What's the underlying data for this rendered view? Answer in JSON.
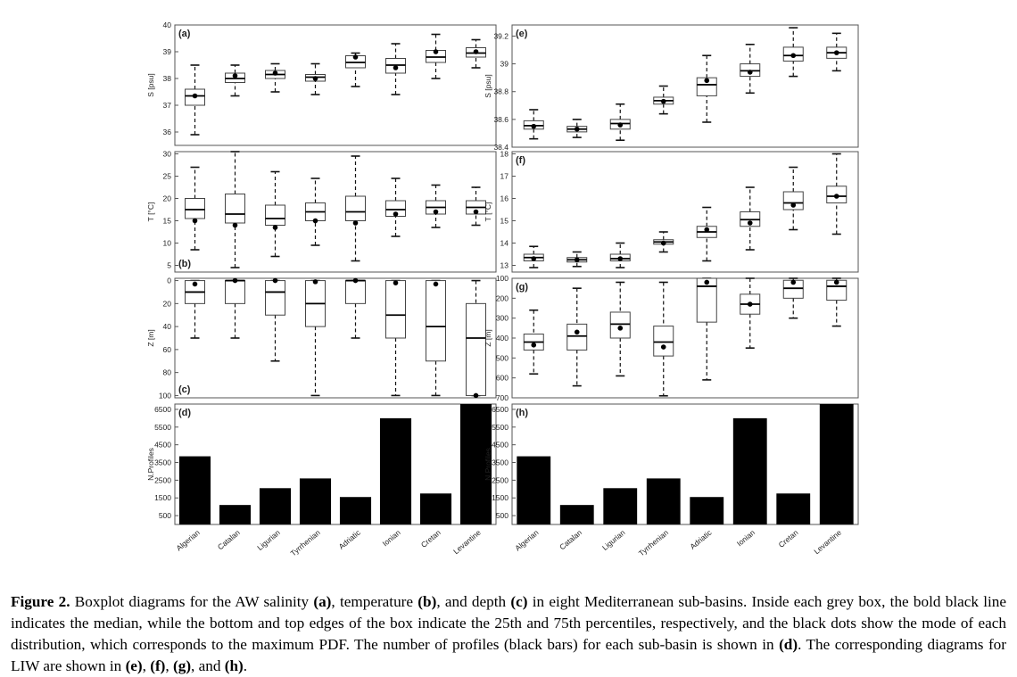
{
  "categories": [
    "Algerian",
    "Catalan",
    "Ligurian",
    "Tyrrhenian",
    "Adriatic",
    "Ionian",
    "Cretan",
    "Levantine"
  ],
  "caption": {
    "prefix": "Figure 2.",
    "body": [
      {
        "t": " Boxplot diagrams for the AW salinity "
      },
      {
        "b": "(a)"
      },
      {
        "t": ", temperature "
      },
      {
        "b": "(b)"
      },
      {
        "t": ", and depth "
      },
      {
        "b": "(c)"
      },
      {
        "t": " in eight Mediterranean sub-basins. Inside each grey box, the bold black line indicates the median, while the bottom and top edges of the box indicate the 25th and 75th percentiles, respectively, and the black dots show the mode of each distribution, which corresponds to the maximum PDF. The number of profiles (black bars) for each sub-basin is shown in "
      },
      {
        "b": "(d)"
      },
      {
        "t": ". The corresponding diagrams for LIW are shown in "
      },
      {
        "b": "(e)"
      },
      {
        "t": ", "
      },
      {
        "b": "(f)"
      },
      {
        "t": ", "
      },
      {
        "b": "(g)"
      },
      {
        "t": ", and "
      },
      {
        "b": "(h)"
      },
      {
        "t": "."
      }
    ]
  },
  "chart_data": [
    {
      "id": "a",
      "type": "box",
      "label": "(a)",
      "label_position": "top-left",
      "ylabel": "S [psu]",
      "ylim": [
        35.5,
        40
      ],
      "yticks": [
        36,
        37,
        38,
        39,
        40
      ],
      "ytick_labels": [
        "36",
        "37",
        "38",
        "39",
        "40"
      ],
      "boxes": [
        {
          "wlo": 35.9,
          "q1": 37.0,
          "med": 37.35,
          "q3": 37.6,
          "whi": 38.5,
          "mode": 37.35
        },
        {
          "wlo": 37.35,
          "q1": 37.85,
          "med": 38.0,
          "q3": 38.2,
          "whi": 38.5,
          "mode": 38.1
        },
        {
          "wlo": 37.5,
          "q1": 38.0,
          "med": 38.15,
          "q3": 38.3,
          "whi": 38.55,
          "mode": 38.2
        },
        {
          "wlo": 37.4,
          "q1": 37.9,
          "med": 38.05,
          "q3": 38.15,
          "whi": 38.55,
          "mode": 38.0
        },
        {
          "wlo": 37.7,
          "q1": 38.4,
          "med": 38.6,
          "q3": 38.85,
          "whi": 38.95,
          "mode": 38.8
        },
        {
          "wlo": 37.4,
          "q1": 38.2,
          "med": 38.5,
          "q3": 38.75,
          "whi": 39.3,
          "mode": 38.4
        },
        {
          "wlo": 38.0,
          "q1": 38.6,
          "med": 38.8,
          "q3": 39.05,
          "whi": 39.65,
          "mode": 39.0
        },
        {
          "wlo": 38.4,
          "q1": 38.8,
          "med": 38.95,
          "q3": 39.15,
          "whi": 39.45,
          "mode": 39.0
        }
      ]
    },
    {
      "id": "b",
      "type": "box",
      "label": "(b)",
      "label_position": "bottom-left",
      "ylabel": "T [°C]",
      "ylim": [
        3.5,
        30.5
      ],
      "yticks": [
        5,
        10,
        15,
        20,
        25,
        30
      ],
      "ytick_labels": [
        "5",
        "10",
        "15",
        "20",
        "25",
        "30"
      ],
      "boxes": [
        {
          "wlo": 8.5,
          "q1": 15.5,
          "med": 17.5,
          "q3": 20.0,
          "whi": 27.0,
          "mode": 15.0
        },
        {
          "wlo": 4.5,
          "q1": 14.5,
          "med": 16.5,
          "q3": 21.0,
          "whi": 30.5,
          "mode": 14.0
        },
        {
          "wlo": 7.0,
          "q1": 14.0,
          "med": 15.5,
          "q3": 18.5,
          "whi": 26.0,
          "mode": 13.5
        },
        {
          "wlo": 9.5,
          "q1": 15.0,
          "med": 17.0,
          "q3": 19.0,
          "whi": 24.5,
          "mode": 15.0
        },
        {
          "wlo": 6.0,
          "q1": 15.0,
          "med": 17.0,
          "q3": 20.5,
          "whi": 29.5,
          "mode": 14.5
        },
        {
          "wlo": 11.5,
          "q1": 16.0,
          "med": 17.5,
          "q3": 19.5,
          "whi": 24.5,
          "mode": 16.5
        },
        {
          "wlo": 13.5,
          "q1": 16.5,
          "med": 18.0,
          "q3": 19.5,
          "whi": 23.0,
          "mode": 17.0
        },
        {
          "wlo": 14.0,
          "q1": 16.5,
          "med": 18.0,
          "q3": 19.5,
          "whi": 22.5,
          "mode": 17.0
        }
      ]
    },
    {
      "id": "c",
      "type": "box",
      "label": "(c)",
      "label_position": "bottom-left",
      "ylabel": "Z [m]",
      "ylim": [
        -2,
        102
      ],
      "y_inverted": true,
      "yticks": [
        0,
        20,
        40,
        60,
        80,
        100
      ],
      "ytick_labels": [
        "0",
        "20",
        "40",
        "60",
        "80",
        "100"
      ],
      "boxes": [
        {
          "wlo": 0,
          "q1": 0,
          "med": 10,
          "q3": 20,
          "whi": 50,
          "mode": 3
        },
        {
          "wlo": 0,
          "q1": 0,
          "med": 0,
          "q3": 20,
          "whi": 50,
          "mode": 0
        },
        {
          "wlo": 0,
          "q1": 0,
          "med": 10,
          "q3": 30,
          "whi": 70,
          "mode": 0
        },
        {
          "wlo": 0,
          "q1": 0,
          "med": 20,
          "q3": 40,
          "whi": 100,
          "mode": 1
        },
        {
          "wlo": 0,
          "q1": 0,
          "med": 0,
          "q3": 20,
          "whi": 50,
          "mode": 0
        },
        {
          "wlo": 0,
          "q1": 0,
          "med": 30,
          "q3": 50,
          "whi": 100,
          "mode": 2
        },
        {
          "wlo": 0,
          "q1": 0,
          "med": 40,
          "q3": 70,
          "whi": 100,
          "mode": 3
        },
        {
          "wlo": 0,
          "q1": 20,
          "med": 50,
          "q3": 100,
          "whi": 100,
          "mode": 100
        }
      ]
    },
    {
      "id": "d",
      "type": "bar",
      "label": "(d)",
      "label_position": "top-left",
      "ylabel": "N.Profiles",
      "ylim": [
        0,
        6800
      ],
      "yticks": [
        500,
        1500,
        2500,
        3500,
        4500,
        5500,
        6500
      ],
      "ytick_labels": [
        "500",
        "1500",
        "2500",
        "3500",
        "4500",
        "5500",
        "6500"
      ],
      "values": [
        3850,
        1100,
        2050,
        2600,
        1550,
        6000,
        1750,
        6800
      ],
      "xtick_labels": true
    },
    {
      "id": "e",
      "type": "box",
      "label": "(e)",
      "label_position": "top-left",
      "ylabel": "S [psu]",
      "ylim": [
        38.4,
        39.28
      ],
      "yticks": [
        38.4,
        38.6,
        38.8,
        39.0,
        39.2
      ],
      "ytick_labels": [
        "38.4",
        "38.6",
        "38.8",
        "39",
        "39.2"
      ],
      "boxes": [
        {
          "wlo": 38.46,
          "q1": 38.53,
          "med": 38.555,
          "q3": 38.59,
          "whi": 38.67,
          "mode": 38.55
        },
        {
          "wlo": 38.47,
          "q1": 38.51,
          "med": 38.53,
          "q3": 38.55,
          "whi": 38.6,
          "mode": 38.53
        },
        {
          "wlo": 38.45,
          "q1": 38.53,
          "med": 38.57,
          "q3": 38.6,
          "whi": 38.71,
          "mode": 38.56
        },
        {
          "wlo": 38.64,
          "q1": 38.71,
          "med": 38.735,
          "q3": 38.76,
          "whi": 38.84,
          "mode": 38.73
        },
        {
          "wlo": 38.58,
          "q1": 38.77,
          "med": 38.85,
          "q3": 38.9,
          "whi": 39.06,
          "mode": 38.88
        },
        {
          "wlo": 38.79,
          "q1": 38.91,
          "med": 38.95,
          "q3": 39.0,
          "whi": 39.14,
          "mode": 38.94
        },
        {
          "wlo": 38.91,
          "q1": 39.02,
          "med": 39.06,
          "q3": 39.12,
          "whi": 39.26,
          "mode": 39.06
        },
        {
          "wlo": 38.95,
          "q1": 39.04,
          "med": 39.08,
          "q3": 39.12,
          "whi": 39.22,
          "mode": 39.08
        }
      ]
    },
    {
      "id": "f",
      "type": "box",
      "label": "(f)",
      "label_position": "top-left",
      "ylabel": "T [°C]",
      "ylim": [
        12.7,
        18.1
      ],
      "yticks": [
        13,
        14,
        15,
        16,
        17,
        18
      ],
      "ytick_labels": [
        "13",
        "14",
        "15",
        "16",
        "17",
        "18"
      ],
      "boxes": [
        {
          "wlo": 12.9,
          "q1": 13.2,
          "med": 13.35,
          "q3": 13.5,
          "whi": 13.85,
          "mode": 13.3
        },
        {
          "wlo": 12.95,
          "q1": 13.15,
          "med": 13.25,
          "q3": 13.35,
          "whi": 13.6,
          "mode": 13.25
        },
        {
          "wlo": 12.9,
          "q1": 13.2,
          "med": 13.3,
          "q3": 13.5,
          "whi": 14.0,
          "mode": 13.3
        },
        {
          "wlo": 13.6,
          "q1": 13.95,
          "med": 14.05,
          "q3": 14.15,
          "whi": 14.5,
          "mode": 14.0
        },
        {
          "wlo": 13.2,
          "q1": 14.25,
          "med": 14.5,
          "q3": 14.75,
          "whi": 15.6,
          "mode": 14.6
        },
        {
          "wlo": 13.7,
          "q1": 14.75,
          "med": 15.05,
          "q3": 15.4,
          "whi": 16.5,
          "mode": 14.9
        },
        {
          "wlo": 14.6,
          "q1": 15.5,
          "med": 15.8,
          "q3": 16.3,
          "whi": 17.4,
          "mode": 15.7
        },
        {
          "wlo": 14.4,
          "q1": 15.8,
          "med": 16.1,
          "q3": 16.55,
          "whi": 18.0,
          "mode": 16.1
        }
      ]
    },
    {
      "id": "g",
      "type": "box",
      "label": "(g)",
      "label_position": "top-left",
      "ylabel": "Z [m]",
      "ylim": [
        100,
        700
      ],
      "y_inverted": true,
      "yticks": [
        100,
        200,
        300,
        400,
        500,
        600,
        700
      ],
      "ytick_labels": [
        "100",
        "200",
        "300",
        "400",
        "500",
        "600",
        "700"
      ],
      "boxes": [
        {
          "wlo": 260,
          "q1": 380,
          "med": 420,
          "q3": 460,
          "whi": 580,
          "mode": 435
        },
        {
          "wlo": 150,
          "q1": 330,
          "med": 390,
          "q3": 460,
          "whi": 640,
          "mode": 370
        },
        {
          "wlo": 120,
          "q1": 270,
          "med": 330,
          "q3": 400,
          "whi": 590,
          "mode": 350
        },
        {
          "wlo": 120,
          "q1": 340,
          "med": 420,
          "q3": 490,
          "whi": 690,
          "mode": 445
        },
        {
          "wlo": 100,
          "q1": 100,
          "med": 140,
          "q3": 320,
          "whi": 610,
          "mode": 120
        },
        {
          "wlo": 100,
          "q1": 180,
          "med": 230,
          "q3": 280,
          "whi": 450,
          "mode": 230
        },
        {
          "wlo": 100,
          "q1": 110,
          "med": 150,
          "q3": 200,
          "whi": 300,
          "mode": 120
        },
        {
          "wlo": 100,
          "q1": 110,
          "med": 140,
          "q3": 210,
          "whi": 340,
          "mode": 120
        }
      ]
    },
    {
      "id": "h",
      "type": "bar",
      "label": "(h)",
      "label_position": "top-left",
      "ylabel": "N.Profiles",
      "ylim": [
        0,
        6800
      ],
      "yticks": [
        500,
        1500,
        2500,
        3500,
        4500,
        5500,
        6500
      ],
      "ytick_labels": [
        "500",
        "1500",
        "2500",
        "3500",
        "4500",
        "5500",
        "6500"
      ],
      "values": [
        3850,
        1100,
        2050,
        2600,
        1550,
        6000,
        1750,
        6800
      ],
      "xtick_labels": true
    }
  ]
}
